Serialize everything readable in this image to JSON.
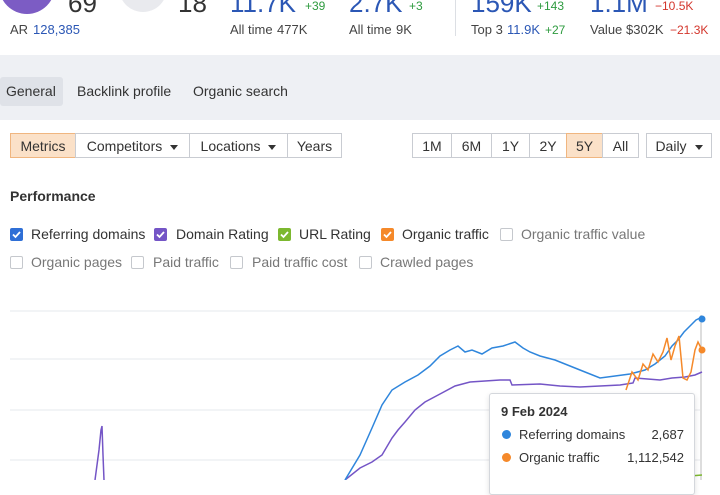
{
  "metrics": [
    {
      "value": "69",
      "sub_label": "AR",
      "sub_value": "128,385"
    },
    {
      "value": "18"
    },
    {
      "value": "11.7K",
      "change": "+39",
      "sub_label": "All time",
      "sub_value": "477K"
    },
    {
      "value": "2.7K",
      "change": "+3",
      "sub_label": "All time",
      "sub_value": "9K"
    },
    {
      "value": "159K",
      "change": "+143",
      "sub_label": "Top 3",
      "sub_value": "11.9K",
      "sub_change": "+27"
    },
    {
      "value": "1.1M",
      "change": "−10.5K",
      "sub_label": "Value",
      "sub_value": "$302K",
      "sub_change": "−21.3K"
    }
  ],
  "tabs": [
    "General",
    "Backlink profile",
    "Organic search"
  ],
  "filters": [
    "Metrics",
    "Competitors",
    "Locations",
    "Years"
  ],
  "ranges": [
    "1M",
    "6M",
    "1Y",
    "2Y",
    "5Y",
    "All"
  ],
  "interval": "Daily",
  "section_title": "Performance",
  "checkboxes": [
    "Referring domains",
    "Domain Rating",
    "URL Rating",
    "Organic traffic",
    "Organic traffic value",
    "Organic pages",
    "Paid traffic",
    "Paid traffic cost",
    "Crawled pages"
  ],
  "tooltip": {
    "date": "9 Feb 2024",
    "rows": [
      {
        "label": "Referring domains",
        "value": "2,687"
      },
      {
        "label": "Organic traffic",
        "value": "1,112,542"
      }
    ]
  }
}
